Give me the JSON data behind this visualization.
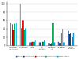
{
  "categories": [
    "Entreprises\nde transport",
    "Flotte totale",
    "Flotte",
    "Nb\nkilomètres",
    "Nb déplac.\nlong",
    "Nb déplac.",
    "Chiffre\nd affaires"
  ],
  "series": [
    {
      "label": "Entreprises",
      "color": "#4472C4",
      "values": [
        55,
        100,
        8,
        8,
        5,
        10,
        35
      ]
    },
    {
      "label": "Prestataires isolés",
      "color": "#243F60",
      "values": [
        50,
        42,
        7,
        7,
        4,
        5,
        28
      ]
    },
    {
      "label": "Réseaux intégrés",
      "color": "#FF0000",
      "values": [
        38,
        60,
        9,
        9,
        6,
        30,
        30
      ]
    },
    {
      "label": "Autres org. transp.",
      "color": "#00B050",
      "values": [
        52,
        38,
        9,
        10,
        55,
        40,
        20
      ]
    },
    {
      "label": "Chargeurs propres",
      "color": "#00B0F0",
      "values": [
        55,
        42,
        12,
        12,
        8,
        8,
        30
      ]
    }
  ],
  "ylim": [
    0,
    105
  ],
  "yticks": [
    0,
    20,
    40,
    60,
    80,
    100
  ],
  "background_color": "#ffffff",
  "grid_color": "#d0d0d0"
}
